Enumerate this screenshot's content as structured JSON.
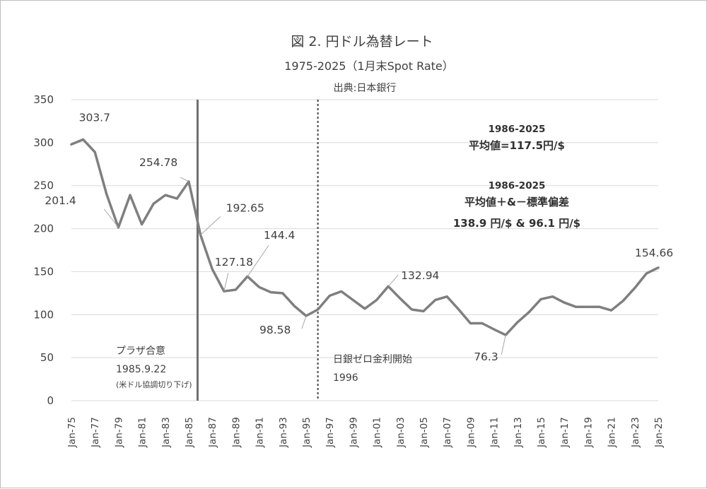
{
  "chart_data": {
    "type": "line",
    "title": "図 2. 円ドル為替レート",
    "subtitle": "1975-2025（1月末Spot Rate）",
    "source": "出典:日本銀行",
    "ylim": [
      0,
      350
    ],
    "yticks": [
      0,
      50,
      100,
      150,
      200,
      250,
      300,
      350
    ],
    "grid": true,
    "legend": "none",
    "x": [
      1975,
      1976,
      1977,
      1978,
      1979,
      1980,
      1981,
      1982,
      1983,
      1984,
      1985,
      1986,
      1987,
      1988,
      1989,
      1990,
      1991,
      1992,
      1993,
      1994,
      1995,
      1996,
      1997,
      1998,
      1999,
      2000,
      2001,
      2002,
      2003,
      2004,
      2005,
      2006,
      2007,
      2008,
      2009,
      2010,
      2011,
      2012,
      2013,
      2014,
      2015,
      2016,
      2017,
      2018,
      2019,
      2020,
      2021,
      2022,
      2023,
      2024,
      2025
    ],
    "xtick_labels": [
      "Jan-75",
      "Jan-77",
      "Jan-79",
      "Jan-81",
      "Jan-83",
      "Jan-85",
      "Jan-87",
      "Jan-89",
      "Jan-91",
      "Jan-93",
      "Jan-95",
      "Jan-97",
      "Jan-99",
      "Jan-01",
      "Jan-03",
      "Jan-05",
      "Jan-07",
      "Jan-09",
      "Jan-11",
      "Jan-13",
      "Jan-15",
      "Jan-17",
      "Jan-19",
      "Jan-21",
      "Jan-23",
      "Jan-25"
    ],
    "series": [
      {
        "values": [
          298,
          303.7,
          289,
          240,
          201.4,
          239,
          205,
          229,
          239,
          235,
          254.78,
          192.65,
          153,
          127.18,
          129,
          144.4,
          132,
          126,
          125,
          110,
          98.58,
          106,
          122,
          127,
          117,
          107,
          117,
          132.94,
          119,
          106,
          104,
          117,
          121,
          106,
          90,
          90,
          83,
          76.3,
          91,
          103,
          118,
          121,
          114,
          109,
          109,
          109,
          105,
          116,
          131,
          148,
          154.66
        ],
        "color": "#7f7f7f"
      }
    ],
    "data_labels": [
      {
        "text": "303.7",
        "x": 1976,
        "y": 303.7
      },
      {
        "text": "201.4",
        "x": 1979,
        "y": 201.4
      },
      {
        "text": "254.78",
        "x": 1985,
        "y": 254.78
      },
      {
        "text": "192.65",
        "x": 1986,
        "y": 192.65
      },
      {
        "text": "127.18",
        "x": 1988,
        "y": 127.18
      },
      {
        "text": "144.4",
        "x": 1990,
        "y": 144.4
      },
      {
        "text": "98.58",
        "x": 1995,
        "y": 98.58
      },
      {
        "text": "132.94",
        "x": 2002,
        "y": 132.94
      },
      {
        "text": "76.3",
        "x": 2012,
        "y": 76.3
      },
      {
        "text": "154.66",
        "x": 2025,
        "y": 154.66
      }
    ],
    "vlines": [
      {
        "x": 1985.75,
        "style": "solid",
        "label": "プラザ合意",
        "date": "1985.9.22",
        "note": "(米ドル協調切り下げ)"
      },
      {
        "x": 1996.0,
        "style": "dotted",
        "label": "日銀ゼロ金利開始",
        "date": "1996"
      }
    ],
    "stats": {
      "mean_period": "1986-2025",
      "mean_text": "平均値=117.5円/$",
      "sd_period": "1986-2025",
      "sd_title": "平均値＋&－標準偏差",
      "sd_text": "138.9 円/$ & 96.1 円/$"
    }
  }
}
